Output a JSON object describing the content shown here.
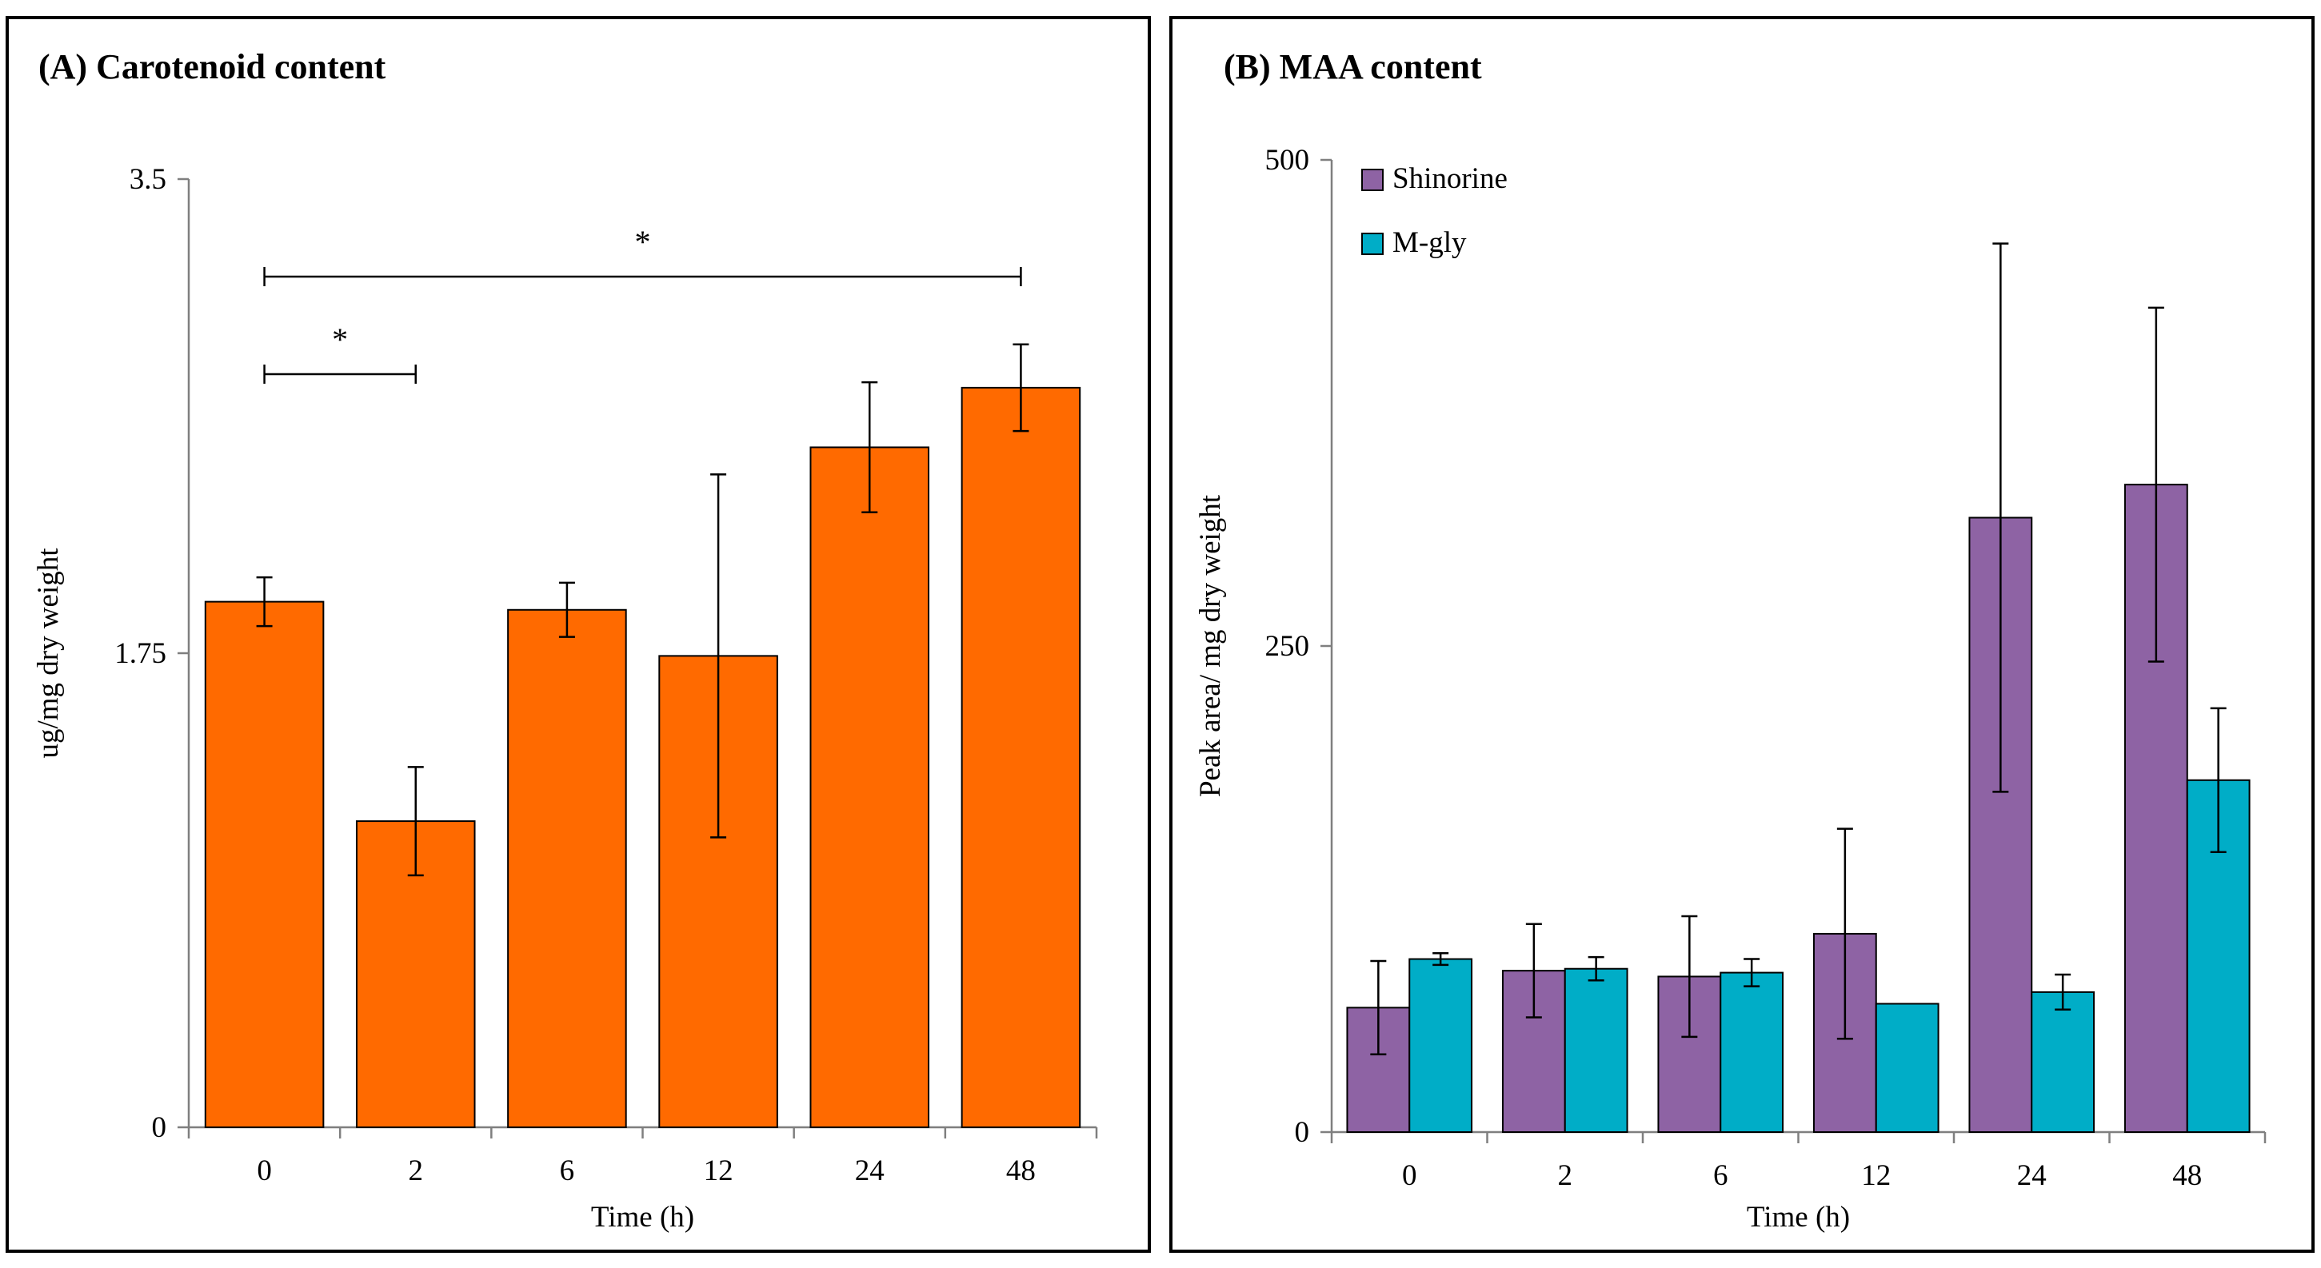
{
  "chart_data": [
    {
      "type": "bar",
      "title": "(A) Carotenoid content",
      "xlabel": "Time (h)",
      "ylabel": "ug/mg dry weight",
      "ylim": [
        0,
        3.5
      ],
      "yticks": [
        "0",
        "1.75",
        "3.5"
      ],
      "categories": [
        "0",
        "2",
        "6",
        "12",
        "24",
        "48"
      ],
      "series": [
        {
          "name": "Carotenoid",
          "color": "#ff6a00",
          "values": [
            1.94,
            1.13,
            1.91,
            1.74,
            2.51,
            2.73
          ],
          "errors": [
            0.09,
            0.2,
            0.1,
            0.67,
            0.24,
            0.16
          ]
        }
      ],
      "significance": [
        {
          "from": "0",
          "to": "2",
          "label": "*",
          "y": 2.78
        },
        {
          "from": "0",
          "to": "48",
          "label": "*",
          "y": 3.14
        }
      ]
    },
    {
      "type": "bar",
      "title": "(B) MAA content",
      "xlabel": "Time (h)",
      "ylabel": "Peak area/ mg dry weight",
      "ylim": [
        0,
        500
      ],
      "yticks": [
        "0",
        "250",
        "500"
      ],
      "categories": [
        "0",
        "2",
        "6",
        "12",
        "24",
        "48"
      ],
      "legend_position": "top-left",
      "series": [
        {
          "name": "Shinorine",
          "color": "#8e63a4",
          "values": [
            64,
            83,
            80,
            102,
            316,
            333
          ],
          "errors": [
            24,
            24,
            31,
            54,
            141,
            91
          ]
        },
        {
          "name": "M-gly",
          "color": "#00adc7",
          "values": [
            89,
            84,
            82,
            66,
            72,
            181
          ],
          "errors": [
            3,
            6,
            7,
            0,
            9,
            37
          ]
        }
      ]
    }
  ]
}
